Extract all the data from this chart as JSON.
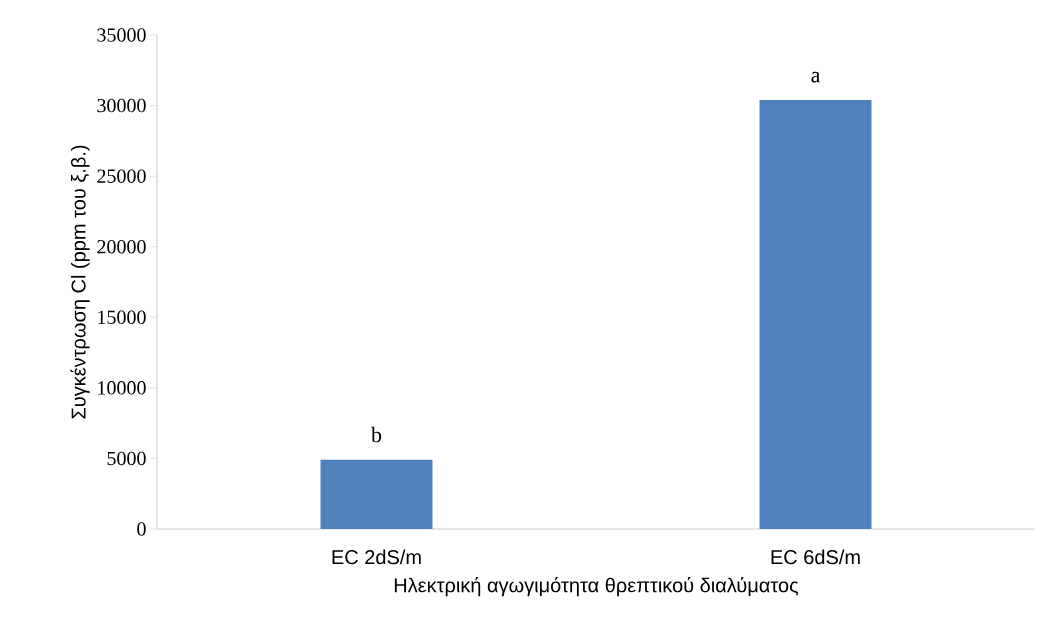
{
  "chart_data": {
    "type": "bar",
    "categories": [
      "EC 2dS/m",
      "EC 6dS/m"
    ],
    "values": [
      4900,
      30400
    ],
    "color": "#4f81bd",
    "xlabel": "Ηλεκτρική αγωγιμότητα θρεπτικού διαλύματος",
    "ylabel": "Συγκέντρωση Cl (ppm του ξ.β.)",
    "ylim": [
      0,
      35000
    ],
    "yticks": [
      0,
      5000,
      10000,
      15000,
      20000,
      25000,
      30000,
      35000
    ],
    "grid": false,
    "annotations": [
      {
        "text": "b",
        "x": "EC 2dS/m",
        "y": 4900
      },
      {
        "text": "a",
        "x": "EC 6dS/m",
        "y": 30400
      }
    ]
  }
}
